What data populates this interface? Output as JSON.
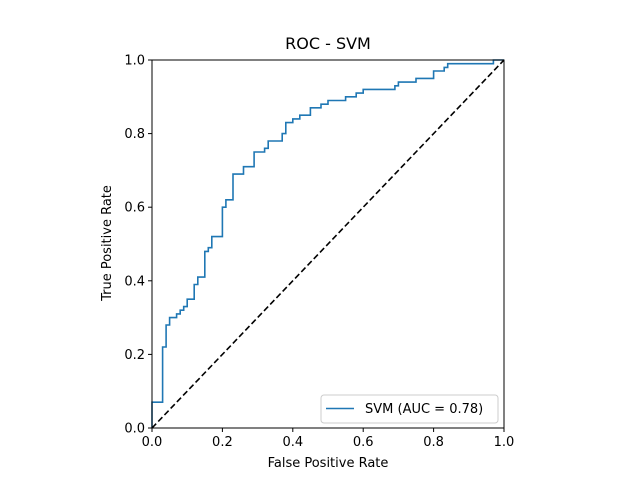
{
  "chart_data": {
    "type": "line",
    "title": "ROC - SVM",
    "xlabel": "False Positive Rate",
    "ylabel": "True Positive Rate",
    "xlim": [
      0,
      1
    ],
    "ylim": [
      0,
      1
    ],
    "xticks": [
      "0.0",
      "0.2",
      "0.4",
      "0.6",
      "0.8",
      "1.0"
    ],
    "yticks": [
      "0.0",
      "0.2",
      "0.4",
      "0.6",
      "0.8",
      "1.0"
    ],
    "grid": false,
    "legend_position": "lower-right",
    "series": [
      {
        "name": "SVM (AUC = 0.78)",
        "color": "#1f77b4",
        "style": "solid",
        "x": [
          0.0,
          0.0,
          0.03,
          0.03,
          0.04,
          0.04,
          0.05,
          0.05,
          0.07,
          0.07,
          0.08,
          0.08,
          0.09,
          0.09,
          0.1,
          0.1,
          0.12,
          0.12,
          0.13,
          0.13,
          0.15,
          0.15,
          0.16,
          0.16,
          0.17,
          0.17,
          0.2,
          0.2,
          0.21,
          0.21,
          0.23,
          0.23,
          0.26,
          0.26,
          0.29,
          0.29,
          0.32,
          0.32,
          0.33,
          0.33,
          0.37,
          0.37,
          0.38,
          0.38,
          0.4,
          0.4,
          0.42,
          0.42,
          0.45,
          0.45,
          0.48,
          0.48,
          0.5,
          0.5,
          0.55,
          0.55,
          0.58,
          0.58,
          0.6,
          0.6,
          0.69,
          0.69,
          0.7,
          0.7,
          0.75,
          0.75,
          0.8,
          0.8,
          0.83,
          0.83,
          0.84,
          0.84,
          0.97,
          0.97,
          1.0
        ],
        "y": [
          0.0,
          0.07,
          0.07,
          0.22,
          0.22,
          0.28,
          0.28,
          0.3,
          0.3,
          0.31,
          0.31,
          0.32,
          0.32,
          0.33,
          0.33,
          0.35,
          0.35,
          0.39,
          0.39,
          0.41,
          0.41,
          0.48,
          0.48,
          0.49,
          0.49,
          0.52,
          0.52,
          0.6,
          0.6,
          0.62,
          0.62,
          0.69,
          0.69,
          0.71,
          0.71,
          0.75,
          0.75,
          0.76,
          0.76,
          0.78,
          0.78,
          0.8,
          0.8,
          0.83,
          0.83,
          0.84,
          0.84,
          0.85,
          0.85,
          0.87,
          0.87,
          0.88,
          0.88,
          0.89,
          0.89,
          0.9,
          0.9,
          0.91,
          0.91,
          0.92,
          0.92,
          0.93,
          0.93,
          0.94,
          0.94,
          0.95,
          0.95,
          0.97,
          0.97,
          0.98,
          0.98,
          0.99,
          0.99,
          1.0,
          1.0
        ]
      },
      {
        "name": "",
        "color": "#000000",
        "style": "dashed",
        "x": [
          0,
          1
        ],
        "y": [
          0,
          1
        ]
      }
    ]
  }
}
